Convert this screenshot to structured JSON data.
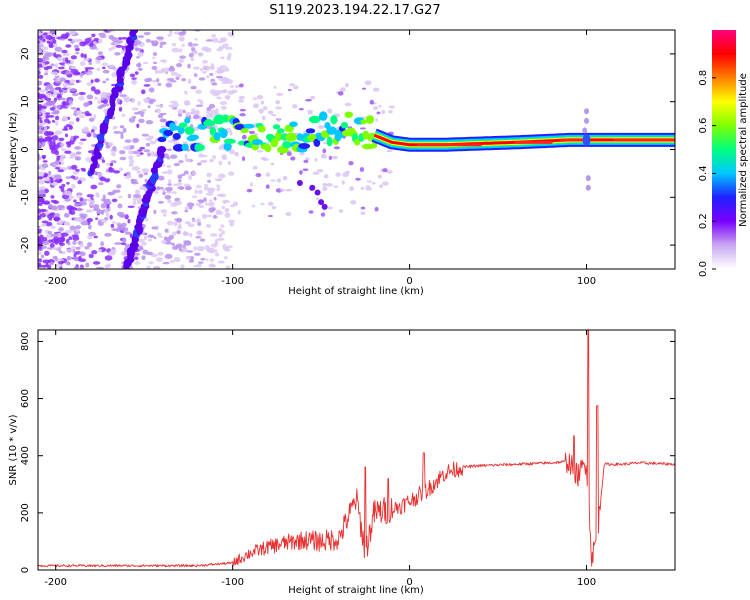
{
  "figure_title": "S119.2023.194.22.17.G27",
  "chart_data": [
    {
      "type": "heatmap",
      "title": "S119.2023.194.22.17.G27",
      "xlabel": "Height of straight line (km)",
      "ylabel": "Frequency (Hz)",
      "xlim": [
        -210,
        150
      ],
      "ylim": [
        -25,
        25
      ],
      "xticks": [
        -200,
        -100,
        0,
        100
      ],
      "yticks": [
        -20,
        -10,
        0,
        10,
        20
      ],
      "colorbar": {
        "label": "Normalized spectral amplitude",
        "range": [
          0,
          1
        ],
        "ticks": [
          0.0,
          0.2,
          0.4,
          0.6,
          0.8
        ],
        "tick_labels": [
          "0.0",
          "0.2",
          "0.4",
          "0.6",
          "0.8"
        ],
        "colormap": [
          "#ffffff",
          "#c8a8f0",
          "#7a00ff",
          "#2020ff",
          "#00c8ff",
          "#00ff80",
          "#80ff00",
          "#ffff00",
          "#ff8000",
          "#ff0000",
          "#ff0080"
        ]
      },
      "main_band": [
        {
          "x": -210,
          "f": 2,
          "amp": 0.05
        },
        {
          "x": -130,
          "f": 3,
          "amp": 0.3
        },
        {
          "x": -110,
          "f": 3.5,
          "amp": 0.4
        },
        {
          "x": -90,
          "f": 3.5,
          "amp": 0.45
        },
        {
          "x": -70,
          "f": 2,
          "amp": 0.5
        },
        {
          "x": -50,
          "f": 4,
          "amp": 0.4
        },
        {
          "x": -35,
          "f": 5,
          "amp": 0.45
        },
        {
          "x": -20,
          "f": 3,
          "amp": 0.6
        },
        {
          "x": -10,
          "f": 1.5,
          "amp": 0.7
        },
        {
          "x": 0,
          "f": 1.0,
          "amp": 0.7
        },
        {
          "x": 20,
          "f": 1.0,
          "amp": 0.9
        },
        {
          "x": 60,
          "f": 1.5,
          "amp": 0.85
        },
        {
          "x": 90,
          "f": 2,
          "amp": 0.9
        },
        {
          "x": 100,
          "f": 2,
          "amp": 0.5
        },
        {
          "x": 120,
          "f": 2,
          "amp": 0.85
        },
        {
          "x": 150,
          "f": 2,
          "amp": 0.9
        }
      ],
      "diagonal_features": [
        {
          "from": [
            -180,
            -5
          ],
          "to": [
            -155,
            25
          ]
        },
        {
          "from": [
            -160,
            -25
          ],
          "to": [
            -140,
            0
          ]
        }
      ]
    },
    {
      "type": "line",
      "xlabel": "Height of straight line (km)",
      "ylabel": "SNR (10 * v/v)",
      "xlim": [
        -210,
        150
      ],
      "ylim": [
        0,
        840
      ],
      "xticks": [
        -200,
        -100,
        0,
        100
      ],
      "yticks": [
        0,
        200,
        400,
        600,
        800
      ],
      "color": "#e83030",
      "series": [
        {
          "name": "SNR",
          "x": [
            -210,
            -150,
            -120,
            -100,
            -90,
            -80,
            -70,
            -60,
            -50,
            -40,
            -30,
            -25,
            -20,
            -10,
            0,
            10,
            20,
            30,
            40,
            60,
            80,
            90,
            95,
            100,
            103,
            106,
            110,
            120,
            130,
            150
          ],
          "y": [
            15,
            15,
            15,
            25,
            60,
            80,
            95,
            105,
            100,
            110,
            250,
            60,
            200,
            210,
            240,
            280,
            340,
            360,
            365,
            370,
            375,
            380,
            330,
            380,
            40,
            120,
            370,
            370,
            375,
            370
          ],
          "spikes": [
            {
              "x": -25,
              "y": 360
            },
            {
              "x": -12,
              "y": 320
            },
            {
              "x": 8,
              "y": 410
            },
            {
              "x": 93,
              "y": 470
            },
            {
              "x": 101,
              "y": 840
            },
            {
              "x": 106,
              "y": 575
            }
          ]
        }
      ]
    }
  ]
}
